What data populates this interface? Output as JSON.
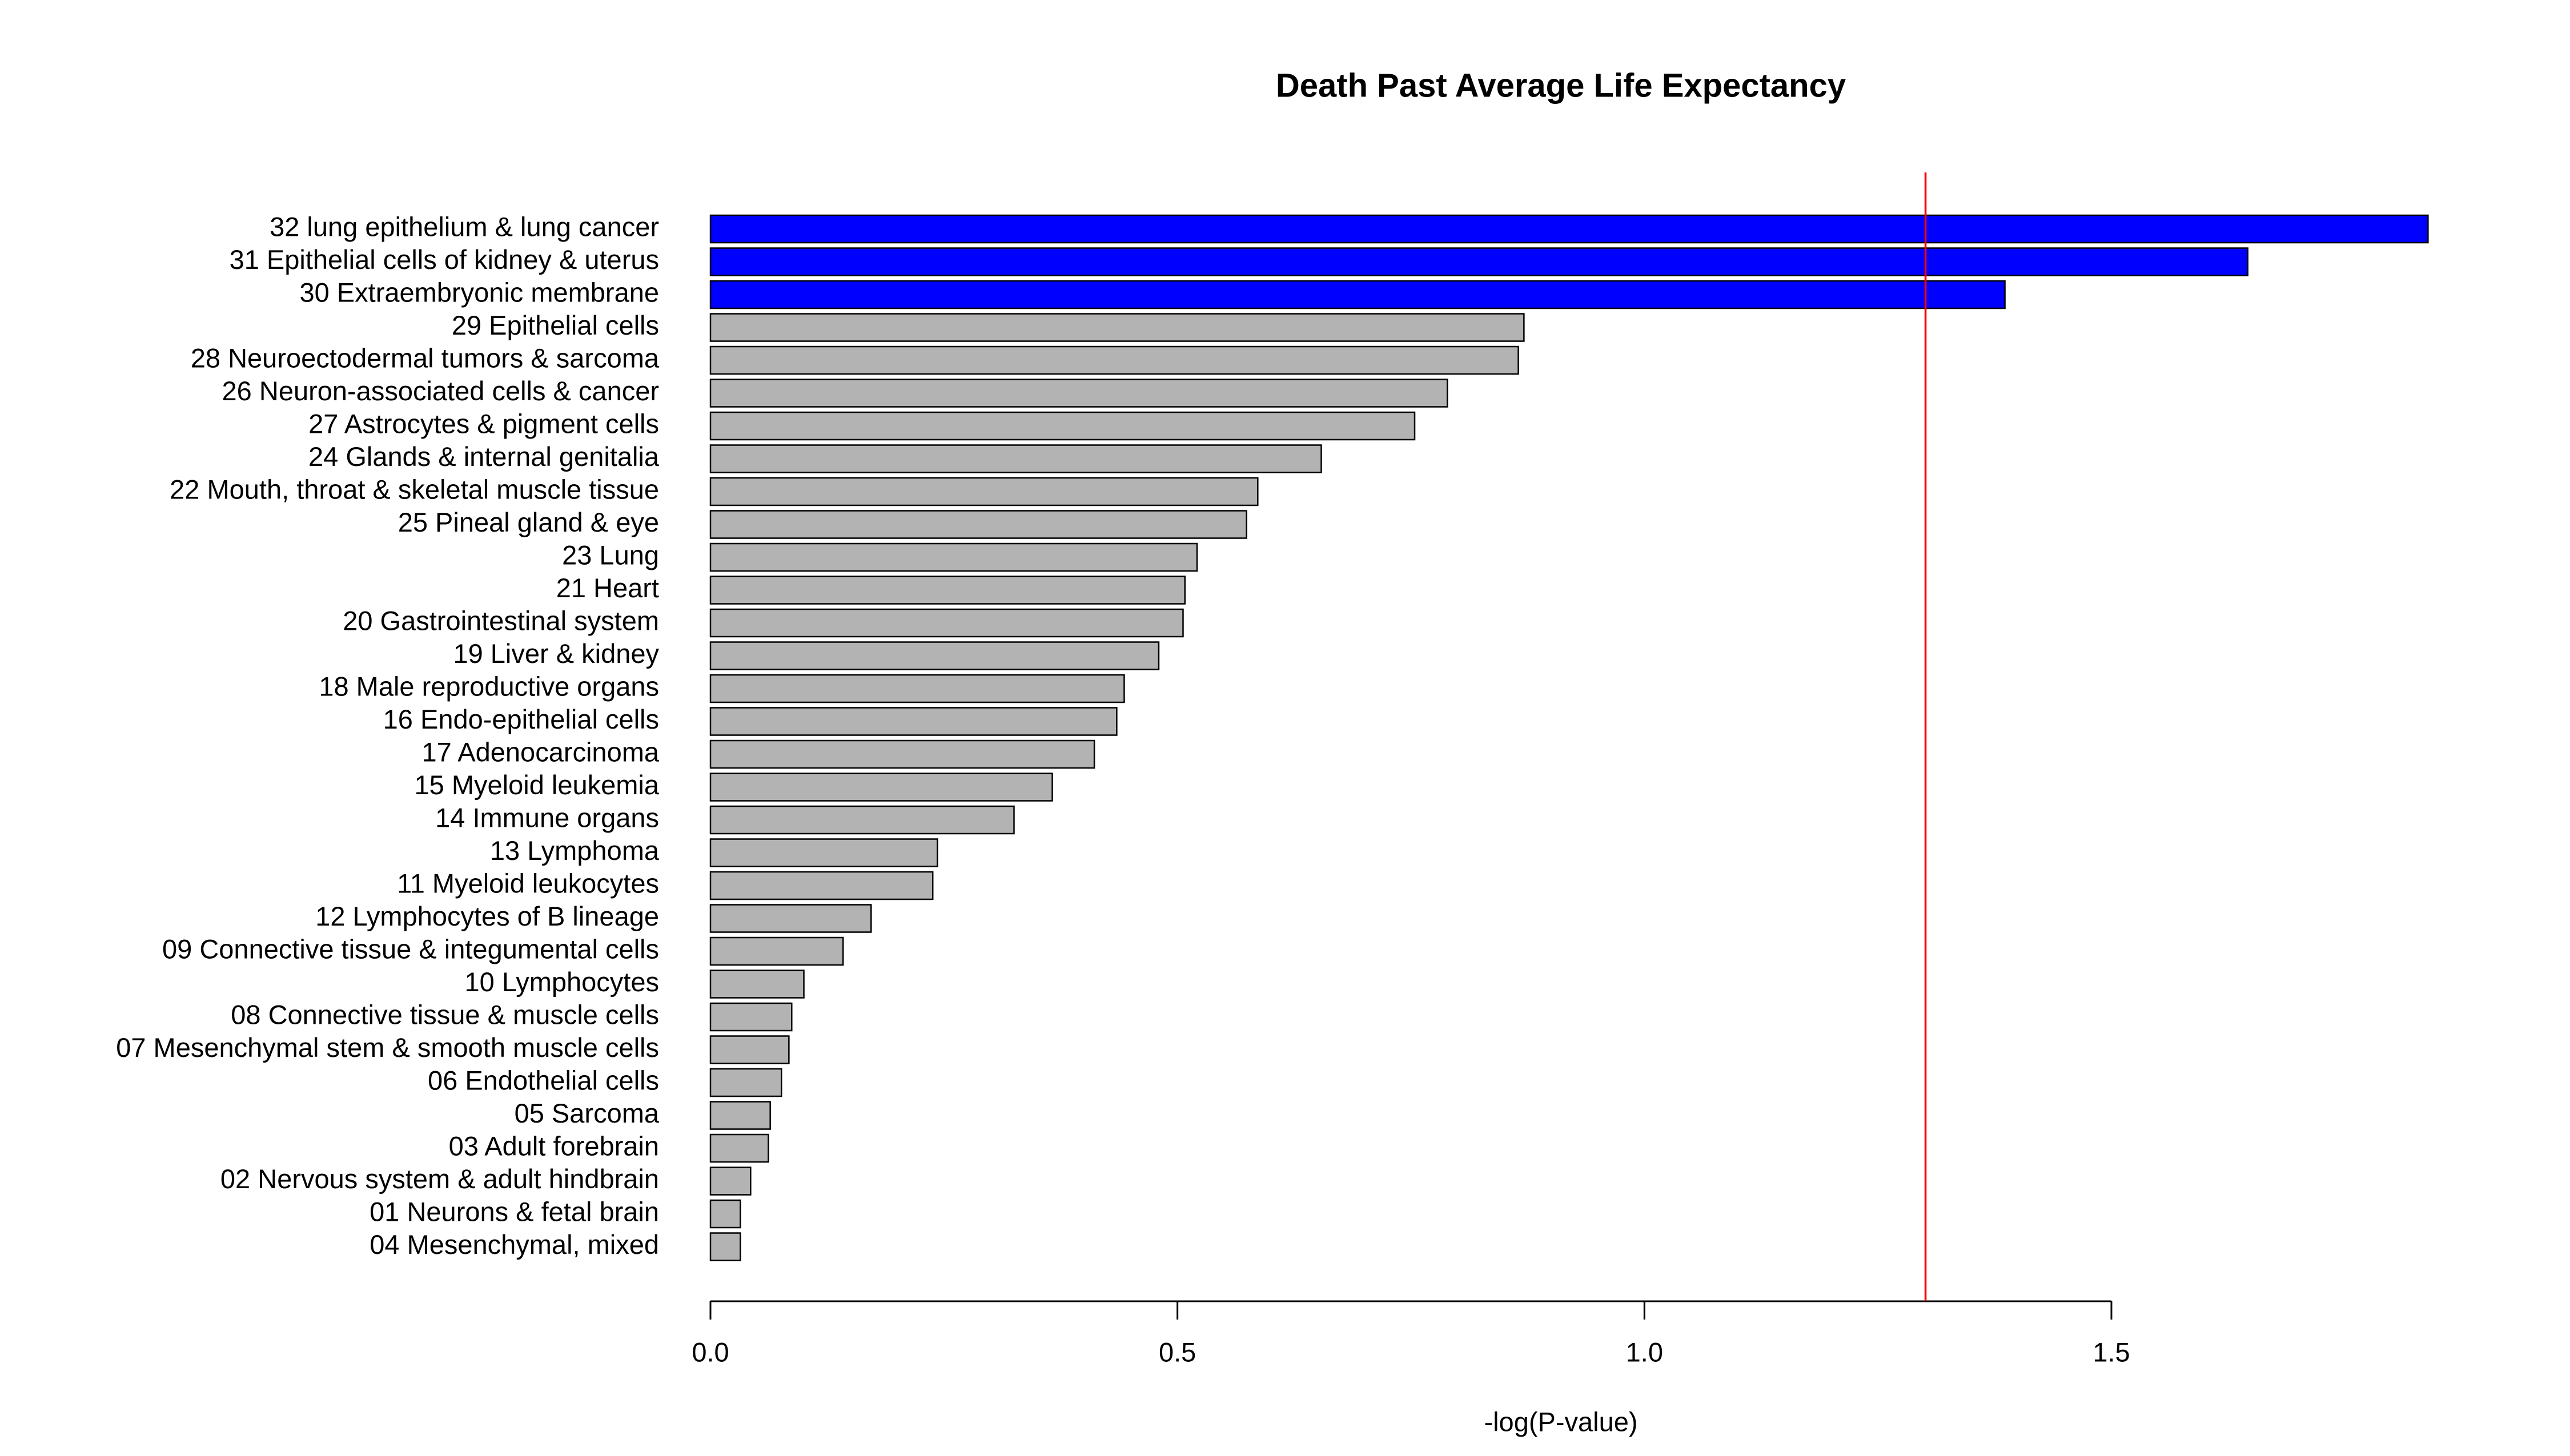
{
  "chart_data": {
    "type": "barh",
    "title": "Death Past Average Life Expectancy",
    "x_label": "-log(P-value)",
    "categories": [
      "32 lung epithelium & lung cancer",
      "31 Epithelial cells of kidney & uterus",
      "30 Extraembryonic membrane",
      "29 Epithelial cells",
      "28 Neuroectodermal tumors & sarcoma",
      "26 Neuron-associated cells & cancer",
      "27 Astrocytes & pigment cells",
      "24 Glands & internal genitalia",
      "22 Mouth, throat & skeletal muscle tissue",
      "25 Pineal gland & eye",
      "23 Lung",
      "21 Heart",
      "20 Gastrointestinal system",
      "19 Liver & kidney",
      "18 Male reproductive organs",
      "16 Endo-epithelial cells",
      "17 Adenocarcinoma",
      "15 Myeloid leukemia",
      "14 Immune organs",
      "13 Lymphoma",
      "11 Myeloid leukocytes",
      "12 Lymphocytes of B lineage",
      "09 Connective tissue & integumental cells",
      "10 Lymphocytes",
      "08 Connective tissue & muscle cells",
      "07 Mesenchymal stem & smooth muscle cells",
      "06 Endothelial cells",
      "05 Sarcoma",
      "03 Adult forebrain",
      "02 Nervous system & adult hindbrain",
      "01 Neurons & fetal brain",
      "04 Mesenchymal, mixed"
    ],
    "values": [
      1.839,
      1.646,
      1.386,
      0.871,
      0.865,
      0.789,
      0.754,
      0.654,
      0.586,
      0.574,
      0.521,
      0.508,
      0.506,
      0.48,
      0.443,
      0.435,
      0.411,
      0.366,
      0.325,
      0.243,
      0.238,
      0.172,
      0.142,
      0.1,
      0.087,
      0.084,
      0.076,
      0.064,
      0.062,
      0.043,
      0.032,
      0.032
    ],
    "color": "#b3b3b3",
    "highlight_color": "#0000ff",
    "reference_line": {
      "value": 1.301,
      "color": "#ff0000"
    },
    "xlim": [
      0,
      1.84
    ],
    "xticks": [
      {
        "value": 0,
        "label": "0.0"
      },
      0.5,
      {
        "value": 1,
        "label": "1.0"
      },
      1.5
    ]
  }
}
